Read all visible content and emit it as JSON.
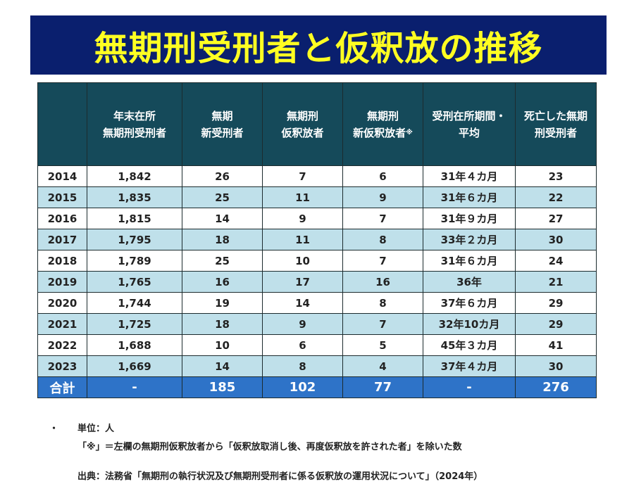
{
  "title": "無期刑受刑者と仮釈放の推移",
  "table": {
    "headers": [
      {
        "l1": "",
        "l2": "",
        "sup": ""
      },
      {
        "l1": "年末在所",
        "l2": "無期刑受刑者",
        "sup": ""
      },
      {
        "l1": "無期",
        "l2": "新受刑者",
        "sup": ""
      },
      {
        "l1": "無期刑",
        "l2": "仮釈放者",
        "sup": ""
      },
      {
        "l1": "無期刑",
        "l2": "新仮釈放者",
        "sup": "※"
      },
      {
        "l1": "受刑在所期間・",
        "l2": "平均",
        "sup": ""
      },
      {
        "l1": "死亡した無期",
        "l2": "刑受刑者",
        "sup": ""
      }
    ],
    "rows": [
      [
        "2014",
        "1,842",
        "26",
        "7",
        "6",
        "31年４カ月",
        "23"
      ],
      [
        "2015",
        "1,835",
        "25",
        "11",
        "9",
        "31年６カ月",
        "22"
      ],
      [
        "2016",
        "1,815",
        "14",
        "9",
        "7",
        "31年９カ月",
        "27"
      ],
      [
        "2017",
        "1,795",
        "18",
        "11",
        "8",
        "33年２カ月",
        "30"
      ],
      [
        "2018",
        "1,789",
        "25",
        "10",
        "7",
        "31年６カ月",
        "24"
      ],
      [
        "2019",
        "1,765",
        "16",
        "17",
        "16",
        "36年",
        "21"
      ],
      [
        "2020",
        "1,744",
        "19",
        "14",
        "8",
        "37年６カ月",
        "29"
      ],
      [
        "2021",
        "1,725",
        "18",
        "9",
        "7",
        "32年10カ月",
        "29"
      ],
      [
        "2022",
        "1,688",
        "10",
        "6",
        "5",
        "45年３カ月",
        "41"
      ],
      [
        "2023",
        "1,669",
        "14",
        "8",
        "4",
        "37年４カ月",
        "30"
      ]
    ],
    "total": [
      "合計",
      "-",
      "185",
      "102",
      "77",
      "-",
      "276"
    ]
  },
  "notes": {
    "bullet": "・",
    "unit": "単位：人",
    "asterisk_note": "「※」＝左欄の無期刑仮釈放者から「仮釈放取消し後、再度仮釈放を許された者」を除いた数",
    "source": "出典：法務省「無期刑の執行状況及び無期刑受刑者に係る仮釈放の運用状況について」（2024年）"
  },
  "colors": {
    "banner_bg": "#0a1f6e",
    "title_text": "#ffff22",
    "header_bg": "#154a5a",
    "row_alt_bg": "#bfe0ea",
    "total_bg": "#2e73c8"
  }
}
